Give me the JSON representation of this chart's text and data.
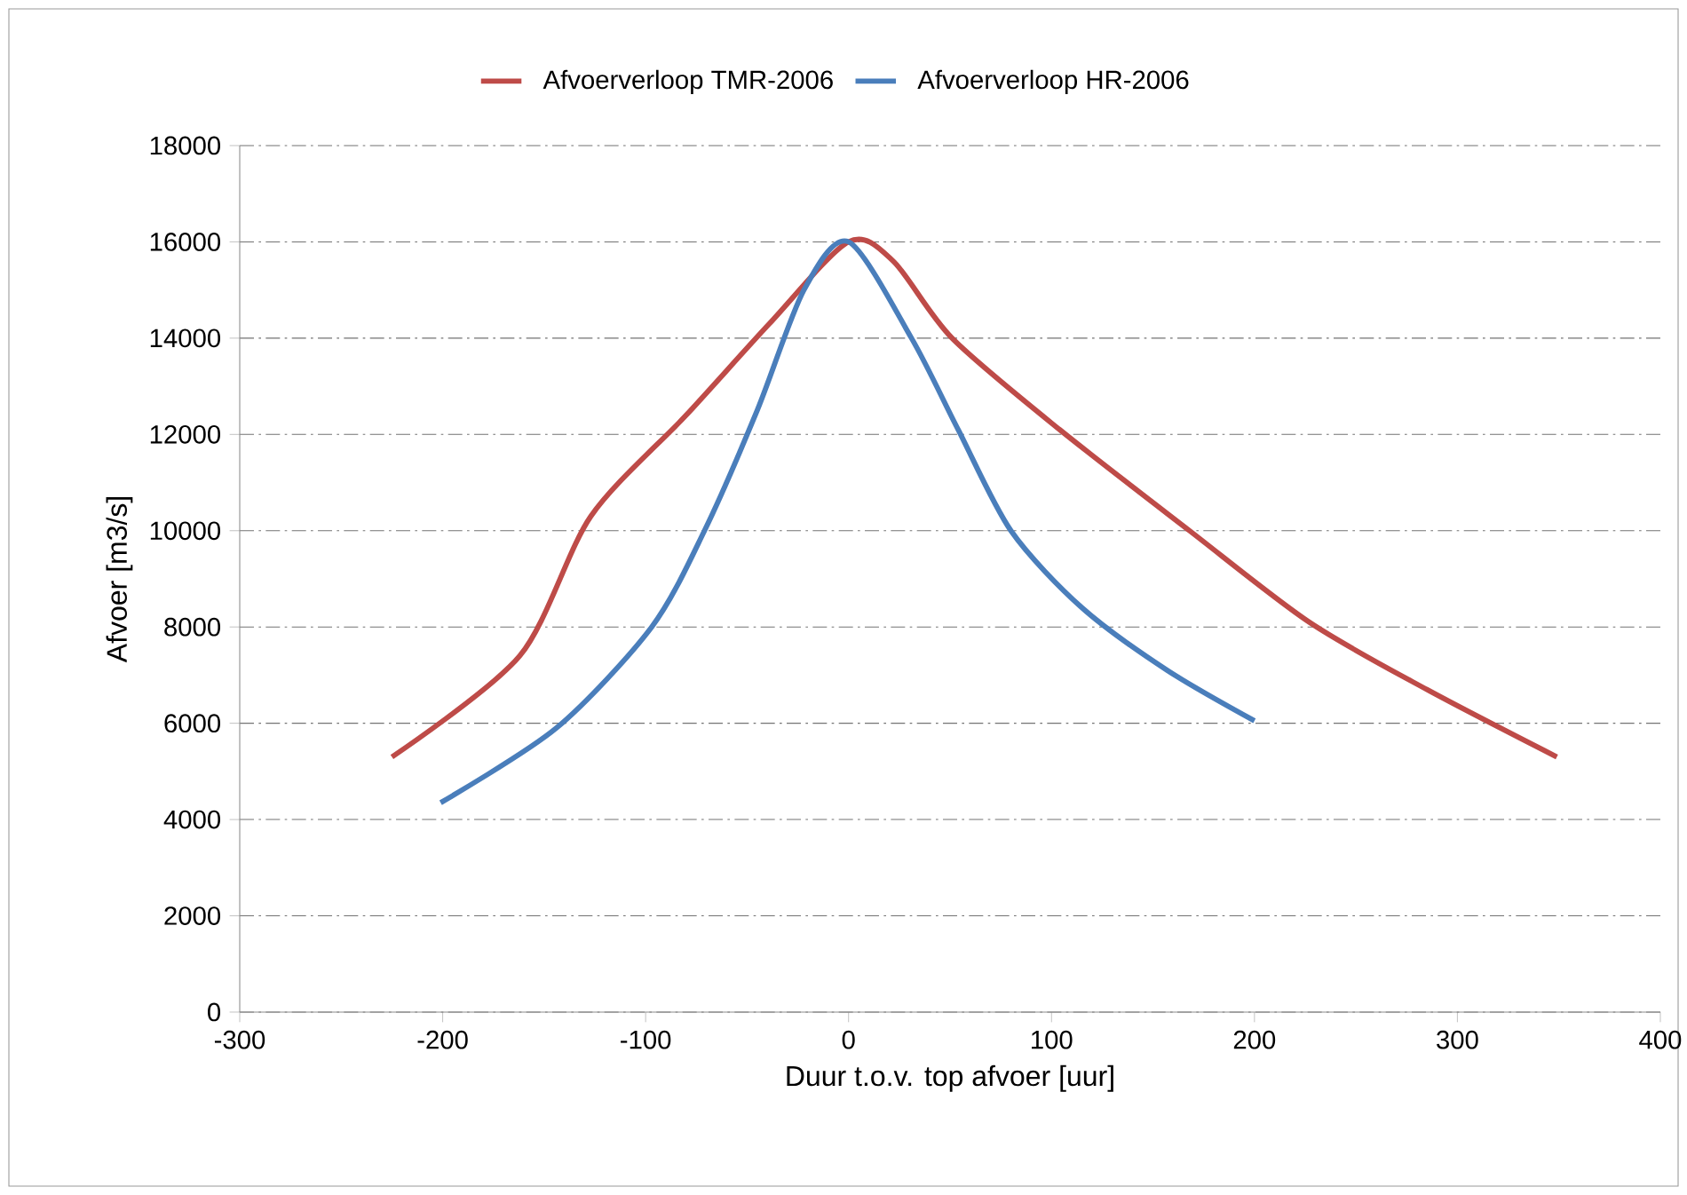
{
  "chart_data": {
    "type": "line",
    "xlabel": "Duur t.o.v. top afvoer [uur]",
    "ylabel": "Afvoer [m3/s]",
    "xlim": [
      -300,
      400
    ],
    "xticks": [
      -300,
      -200,
      -100,
      0,
      100,
      200,
      300,
      400
    ],
    "ylim": [
      0,
      18000
    ],
    "yticks": [
      0,
      2000,
      4000,
      6000,
      8000,
      10000,
      12000,
      14000,
      16000,
      18000
    ],
    "grid": "y",
    "legend": "top",
    "marker": "none",
    "line_style": "solid",
    "series": [
      {
        "name": "Afvoerverloop TMR-2006",
        "color": "#be4b48",
        "x": [
          -225,
          -162,
          -127,
          -80,
          -39,
          0,
          22,
          51,
          104,
          168,
          227,
          285,
          349
        ],
        "values": [
          5300,
          7400,
          10300,
          12400,
          14300,
          16000,
          15600,
          14000,
          12100,
          10000,
          8100,
          6700,
          5300
        ]
      },
      {
        "name": "Afvoerverloop HR-2006",
        "color": "#4a7ebb",
        "x": [
          -201,
          -144,
          -97,
          -71,
          -45,
          -22,
          0,
          31,
          54,
          80,
          115,
          157,
          200
        ],
        "values": [
          4350,
          5900,
          8000,
          10000,
          12500,
          15000,
          16000,
          14000,
          12100,
          10000,
          8400,
          7100,
          6050
        ]
      }
    ]
  }
}
